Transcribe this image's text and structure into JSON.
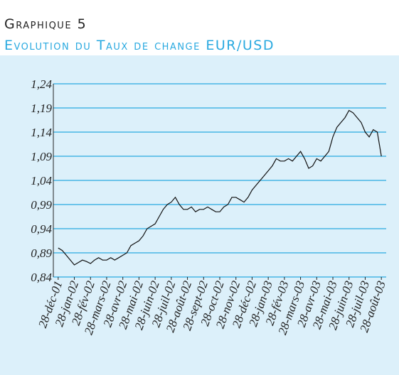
{
  "chart_data": {
    "type": "line",
    "title": "Graphique 5",
    "subtitle": "Evolution du Taux de change EUR/USD",
    "x": [
      0,
      0.25,
      0.5,
      0.75,
      1,
      1.25,
      1.5,
      1.75,
      2,
      2.25,
      2.5,
      2.75,
      3,
      3.25,
      3.5,
      3.75,
      4,
      4.25,
      4.5,
      4.75,
      5,
      5.25,
      5.5,
      5.75,
      6,
      6.25,
      6.5,
      6.75,
      7,
      7.25,
      7.5,
      7.75,
      8,
      8.25,
      8.5,
      8.75,
      9,
      9.25,
      9.5,
      9.75,
      10,
      10.25,
      10.5,
      10.75,
      11,
      11.25,
      11.5,
      11.75,
      12,
      12.25,
      12.5,
      12.75,
      13,
      13.25,
      13.5,
      13.75,
      14,
      14.25,
      14.5,
      14.75,
      15,
      15.25,
      15.5,
      15.75,
      16,
      16.25,
      16.5,
      16.75,
      17,
      17.25,
      17.5,
      17.75,
      18,
      18.25,
      18.5,
      18.75,
      19,
      19.25,
      19.5,
      19.75,
      20
    ],
    "series": [
      {
        "name": "EUR/USD",
        "color": "#111111",
        "values": [
          0.9,
          0.895,
          0.885,
          0.875,
          0.865,
          0.87,
          0.875,
          0.872,
          0.868,
          0.875,
          0.88,
          0.875,
          0.875,
          0.88,
          0.875,
          0.88,
          0.885,
          0.89,
          0.905,
          0.91,
          0.915,
          0.925,
          0.94,
          0.945,
          0.95,
          0.965,
          0.98,
          0.99,
          0.995,
          1.005,
          0.99,
          0.98,
          0.98,
          0.985,
          0.975,
          0.98,
          0.98,
          0.985,
          0.98,
          0.975,
          0.975,
          0.985,
          0.99,
          1.005,
          1.005,
          1.0,
          0.995,
          1.005,
          1.02,
          1.03,
          1.04,
          1.05,
          1.06,
          1.07,
          1.085,
          1.08,
          1.08,
          1.085,
          1.08,
          1.09,
          1.1,
          1.085,
          1.065,
          1.07,
          1.085,
          1.08,
          1.09,
          1.1,
          1.13,
          1.15,
          1.16,
          1.17,
          1.185,
          1.18,
          1.17,
          1.16,
          1.14,
          1.13,
          1.145,
          1.14,
          1.09
        ]
      }
    ],
    "xlim": [
      -0.3,
      20.3
    ],
    "xticks": [
      {
        "value": 0,
        "label": "28-déc-01"
      },
      {
        "value": 1,
        "label": "28-jan-02"
      },
      {
        "value": 2,
        "label": "28-fév-02"
      },
      {
        "value": 3,
        "label": "28-mars-02"
      },
      {
        "value": 4,
        "label": "28-avr-02"
      },
      {
        "value": 5,
        "label": "28-mai-02"
      },
      {
        "value": 6,
        "label": "28-juin-02"
      },
      {
        "value": 7,
        "label": "28-juil-02"
      },
      {
        "value": 8,
        "label": "28-août-02"
      },
      {
        "value": 9,
        "label": "28-sept-02"
      },
      {
        "value": 10,
        "label": "28-oct-02"
      },
      {
        "value": 11,
        "label": "28-nov-02"
      },
      {
        "value": 12,
        "label": "28-déc-02"
      },
      {
        "value": 13,
        "label": "28-jan-03"
      },
      {
        "value": 14,
        "label": "28-fév-03"
      },
      {
        "value": 15,
        "label": "28-mars-03"
      },
      {
        "value": 16,
        "label": "28-avr-03"
      },
      {
        "value": 17,
        "label": "28-mai-03"
      },
      {
        "value": 18,
        "label": "28-juin-03"
      },
      {
        "value": 19,
        "label": "28-juil-03"
      },
      {
        "value": 20,
        "label": "28-août-03"
      }
    ],
    "ylim": [
      0.84,
      1.24
    ],
    "yticks": [
      {
        "value": 0.84,
        "label": "0,84"
      },
      {
        "value": 0.89,
        "label": "0,89"
      },
      {
        "value": 0.94,
        "label": "0,94"
      },
      {
        "value": 0.99,
        "label": "0,99"
      },
      {
        "value": 1.04,
        "label": "1,04"
      },
      {
        "value": 1.09,
        "label": "1,09"
      },
      {
        "value": 1.14,
        "label": "1,14"
      },
      {
        "value": 1.19,
        "label": "1,19"
      },
      {
        "value": 1.24,
        "label": "1,24"
      }
    ],
    "grid": true,
    "grid_color": "#29a9e0"
  }
}
